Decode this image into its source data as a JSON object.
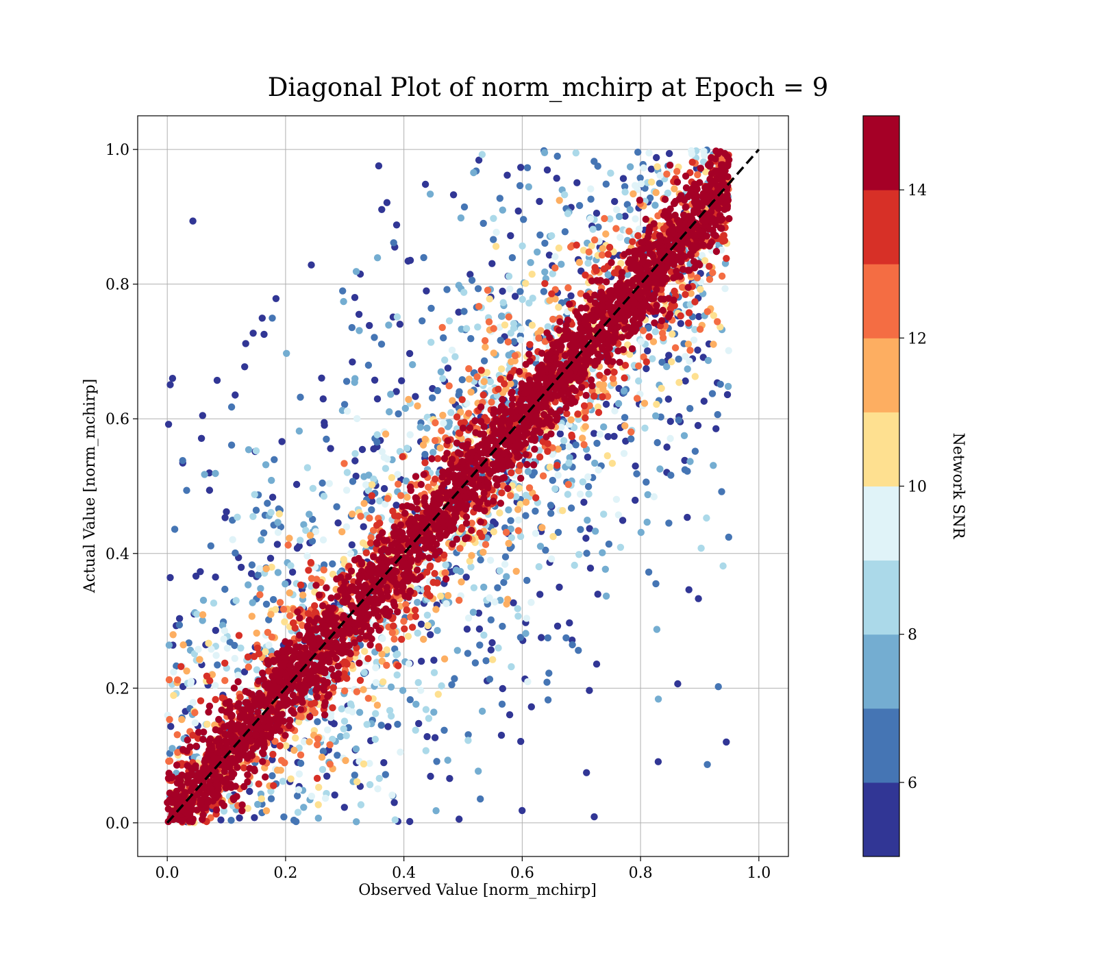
{
  "chart_data": {
    "type": "scatter",
    "title": "Diagonal Plot of norm_mchirp at Epoch = 9",
    "xlabel": "Observed Value [norm_mchirp]",
    "ylabel": "Actual Value [norm_mchirp]",
    "xlim": [
      -0.05,
      1.05
    ],
    "ylim": [
      -0.05,
      1.05
    ],
    "xticks": [
      0.0,
      0.2,
      0.4,
      0.6,
      0.8,
      1.0
    ],
    "yticks": [
      0.0,
      0.2,
      0.4,
      0.6,
      0.8,
      1.0
    ],
    "xtick_labels": [
      "0.0",
      "0.2",
      "0.4",
      "0.6",
      "0.8",
      "1.0"
    ],
    "ytick_labels": [
      "0.0",
      "0.2",
      "0.4",
      "0.6",
      "0.8",
      "1.0"
    ],
    "grid": true,
    "reference_line": {
      "style": "dashed",
      "color": "#000000",
      "from": [
        0.0,
        0.0
      ],
      "to": [
        1.0,
        1.0
      ]
    },
    "observed_range": [
      0.0,
      0.95
    ],
    "actual_range": [
      0.0,
      1.0
    ],
    "series": [
      {
        "name": "snr 5-6",
        "snr": 5.5,
        "color": "#313695",
        "spread": 0.3
      },
      {
        "name": "snr 6-7",
        "snr": 6.5,
        "color": "#4575b4",
        "spread": 0.25
      },
      {
        "name": "snr 7-8",
        "snr": 7.5,
        "color": "#74add1",
        "spread": 0.21
      },
      {
        "name": "snr 8-9",
        "snr": 8.5,
        "color": "#abd9e9",
        "spread": 0.18
      },
      {
        "name": "snr 9-10",
        "snr": 9.5,
        "color": "#e0f3f8",
        "spread": 0.15
      },
      {
        "name": "snr 10-11",
        "snr": 10.5,
        "color": "#fee090",
        "spread": 0.12
      },
      {
        "name": "snr 11-12",
        "snr": 11.5,
        "color": "#fdae61",
        "spread": 0.1
      },
      {
        "name": "snr 12-13",
        "snr": 12.5,
        "color": "#f46d43",
        "spread": 0.08
      },
      {
        "name": "snr 13-14",
        "snr": 13.5,
        "color": "#d73027",
        "spread": 0.06
      },
      {
        "name": "snr 14-15",
        "snr": 14.5,
        "color": "#a50026",
        "spread": 0.035
      }
    ],
    "colorbar": {
      "label": "Network SNR",
      "range": [
        5,
        15
      ],
      "boundaries": [
        5,
        6,
        7,
        8,
        9,
        10,
        11,
        12,
        13,
        14,
        15
      ],
      "colors": [
        "#313695",
        "#4575b4",
        "#74add1",
        "#abd9e9",
        "#e0f3f8",
        "#fee090",
        "#fdae61",
        "#f46d43",
        "#d73027",
        "#a50026"
      ],
      "ticks": [
        6,
        8,
        10,
        12,
        14
      ],
      "tick_labels": [
        "6",
        "8",
        "10",
        "12",
        "14"
      ]
    }
  }
}
